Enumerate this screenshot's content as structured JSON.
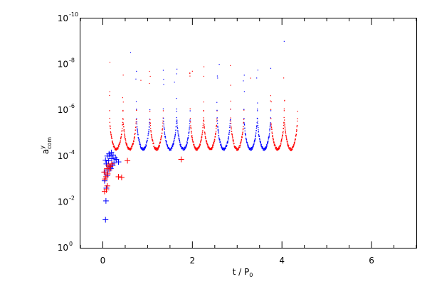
{
  "chart_data": {
    "type": "scatter",
    "xlabel_main": "t / P",
    "xlabel_sub": "0",
    "ylabel_main": "a",
    "ylabel_sup": "y",
    "ylabel_sub": "com",
    "xlim": [
      -0.5,
      7.0
    ],
    "ylim_log10": [
      -10,
      0
    ],
    "y_scale": "log",
    "x_ticks": [
      0,
      2,
      4,
      6
    ],
    "x_tick_labels": [
      "0",
      "2",
      "4",
      "6"
    ],
    "y_ticks_log10": [
      0,
      -2,
      -4,
      -6,
      -8,
      -10
    ],
    "y_tick_labels": [
      "10",
      "10",
      "10",
      "10",
      "10",
      "10"
    ],
    "y_tick_exponents": [
      "0",
      "-2",
      "-4",
      "-6",
      "-8",
      "-10"
    ],
    "grid": false,
    "colors": {
      "red": "#ff0000",
      "blue": "#0000ff",
      "axis": "#000000"
    },
    "oscillation": {
      "start": 0.15,
      "period": 0.3,
      "cycles": 14,
      "peak": 5e-05,
      "trough": 1e-06,
      "colors": [
        "red",
        "red",
        "blue",
        "red",
        "blue",
        "blue",
        "red",
        "red",
        "blue",
        "red",
        "blue",
        "blue",
        "red",
        "red"
      ]
    },
    "series": [
      {
        "marker": "plus",
        "color": "blue",
        "points": [
          [
            0.06,
            0.06
          ],
          [
            0.07,
            0.009
          ],
          [
            0.08,
            0.0025
          ],
          [
            0.04,
            0.0012
          ],
          [
            0.1,
            0.0007
          ],
          [
            0.05,
            0.0005
          ],
          [
            0.12,
            0.0004
          ],
          [
            0.15,
            0.0003
          ],
          [
            0.08,
            0.00022
          ],
          [
            0.18,
            0.00035
          ],
          [
            0.22,
            0.00025
          ],
          [
            0.06,
            0.00015
          ],
          [
            0.13,
            0.00016
          ],
          [
            0.2,
            0.00013
          ],
          [
            0.25,
            0.0002
          ],
          [
            0.28,
            0.00012
          ],
          [
            0.1,
            0.0001
          ],
          [
            0.16,
            0.0001
          ],
          [
            0.23,
            9e-05
          ],
          [
            0.3,
            0.00014
          ],
          [
            0.14,
            8e-05
          ],
          [
            0.19,
            7e-05
          ],
          [
            0.35,
            0.00018
          ]
        ]
      },
      {
        "marker": "plus",
        "color": "red",
        "points": [
          [
            0.04,
            0.0035
          ],
          [
            0.08,
            0.003
          ],
          [
            0.1,
            0.002
          ],
          [
            0.05,
            0.001
          ],
          [
            0.07,
            0.0008
          ],
          [
            0.11,
            0.0006
          ],
          [
            0.15,
            0.0004
          ],
          [
            0.03,
            0.0005
          ],
          [
            0.09,
            0.00035
          ],
          [
            0.17,
            0.00028
          ],
          [
            0.35,
            0.0008
          ],
          [
            0.42,
            0.00085
          ],
          [
            0.55,
            0.00016
          ],
          [
            1.75,
            0.00014
          ],
          [
            0.2,
            0.00022
          ],
          [
            0.12,
            0.00025
          ]
        ]
      }
    ]
  }
}
